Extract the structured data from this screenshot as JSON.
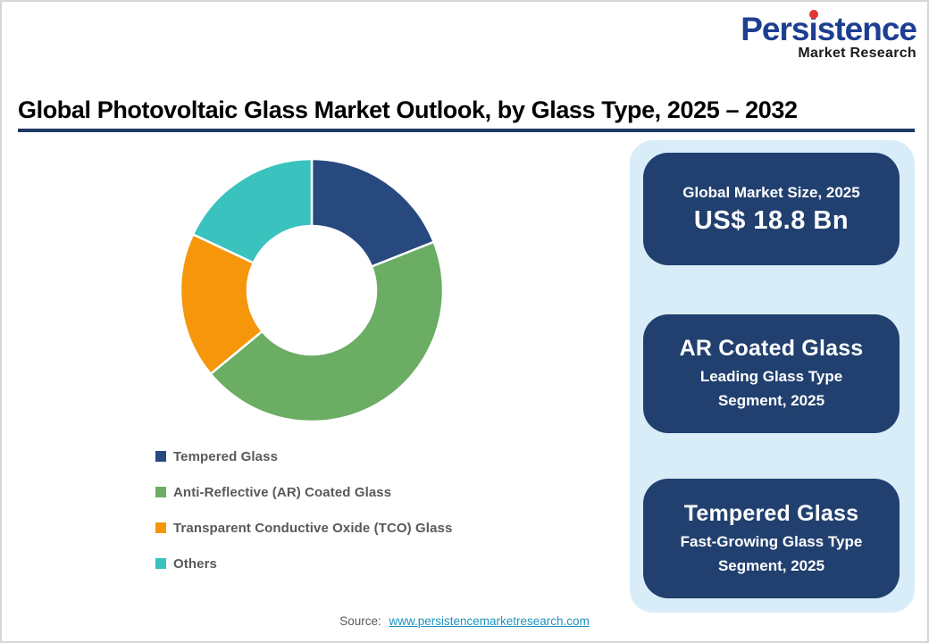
{
  "logo": {
    "name": "Persistence",
    "tagline": "Market Research",
    "brand_blue": "#1d3f92",
    "brand_red": "#e43530",
    "tagline_color": "#1a1a1a"
  },
  "header": {
    "title": "Global Photovoltaic Glass Market Outlook, by Glass Type, 2025 – 2032",
    "rule_color": "#1f3864"
  },
  "chart_data": {
    "type": "pie",
    "style": "donut",
    "title": "Global Photovoltaic Glass Market Outlook, by Glass Type, 2025 – 2032",
    "categories": [
      "Tempered Glass",
      "Anti-Reflective (AR) Coated Glass",
      "Transparent Conductive Oxide (TCO) Glass",
      "Others"
    ],
    "values": [
      19,
      45,
      18,
      18
    ],
    "values_note": "percent shares estimated from arc angles; no numeric labels shown in chart",
    "colors": [
      "#27497e",
      "#6bad63",
      "#f6960b",
      "#39c2be"
    ],
    "start_angle_deg": 0,
    "direction": "clockwise",
    "inner_radius_ratio": 0.49,
    "data_labels": "none",
    "legend_position": "bottom-left"
  },
  "panel": {
    "bg_color": "#d9edf9",
    "box_color": "#21406f",
    "boxes": [
      {
        "title": "Global Market Size, 2025",
        "value": "US$ 18.8 Bn"
      },
      {
        "title": "AR Coated Glass",
        "subtitle_line1": "Leading Glass Type",
        "subtitle_line2": "Segment, 2025"
      },
      {
        "title": "Tempered Glass",
        "subtitle_line1": "Fast-Growing Glass Type",
        "subtitle_line2": "Segment, 2025"
      }
    ]
  },
  "source": {
    "label": "Source:",
    "link": "www.persistencemarketresearch.com",
    "link_color": "#1d93bd"
  }
}
